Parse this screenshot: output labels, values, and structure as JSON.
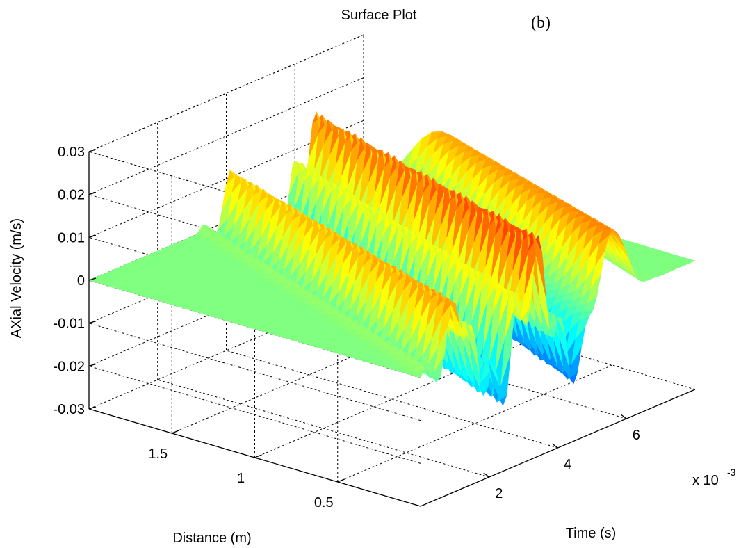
{
  "chart_data": {
    "type": "surface",
    "title": "Surface Plot",
    "panel_label": "(b)",
    "xlabel": "Time (s)",
    "ylabel": "Distance (m)",
    "zlabel": "AXial Velocity (m/s)",
    "x_exponent_label": "x 10",
    "x_exponent": "-3",
    "xlim": [
      0,
      8
    ],
    "ylim": [
      0,
      2
    ],
    "zlim": [
      -0.03,
      0.03
    ],
    "x_ticks": [
      2,
      4,
      6
    ],
    "y_ticks": [
      0.5,
      1,
      1.5
    ],
    "z_ticks": [
      -0.03,
      -0.02,
      -0.01,
      0,
      0.01,
      0.02,
      0.03
    ],
    "x_tick_labels": [
      "2",
      "4",
      "6"
    ],
    "y_tick_labels": [
      "0.5",
      "1",
      "1.5"
    ],
    "z_tick_labels": [
      "-0.03",
      "-0.02",
      "-0.01",
      "0",
      "0.01",
      "0.02",
      "0.03"
    ],
    "grid": true,
    "colormap": "jet",
    "peak_amplitude": 0.028,
    "pulse_count": 5
  }
}
